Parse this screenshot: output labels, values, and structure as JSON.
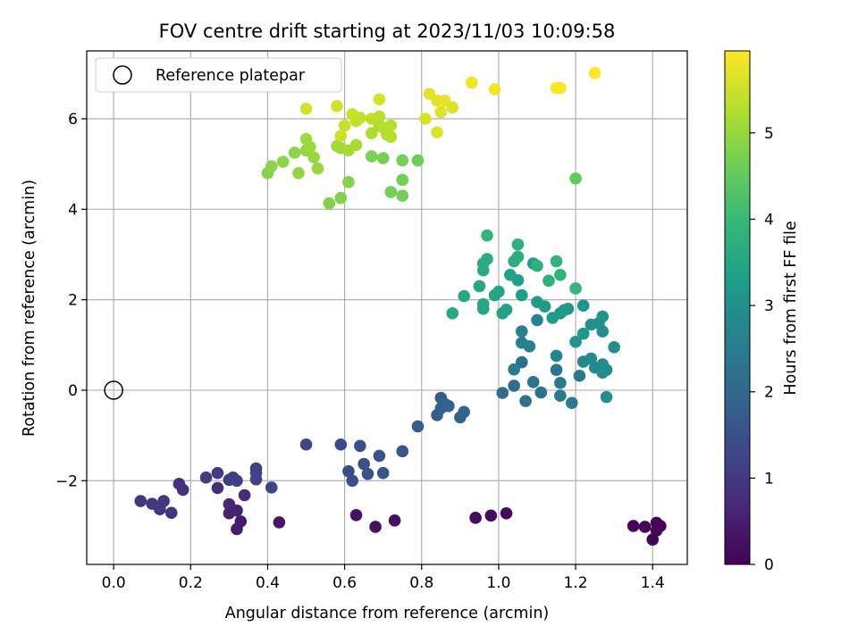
{
  "chart_data": {
    "type": "scatter",
    "title": "FOV centre drift starting at 2023/11/03 10:09:58",
    "xlabel": "Angular distance from reference (arcmin)",
    "ylabel": "Rotation from reference (arcmin)",
    "xlim": [
      -0.07,
      1.49
    ],
    "ylim": [
      -3.85,
      7.5
    ],
    "x_ticks": [
      "0.0",
      "0.2",
      "0.4",
      "0.6",
      "0.8",
      "1.0",
      "1.2",
      "1.4"
    ],
    "x_tick_values": [
      0,
      0.2,
      0.4,
      0.6,
      0.8,
      1.0,
      1.2,
      1.4
    ],
    "y_ticks": [
      "−2",
      "0",
      "2",
      "4",
      "6"
    ],
    "y_tick_values": [
      -2,
      0,
      2,
      4,
      6
    ],
    "grid": true,
    "legend_position": "upper-left",
    "legend": [
      "Reference platepar"
    ],
    "reference_point": {
      "x": 0,
      "y": 0
    },
    "colorbar": {
      "label": "Hours from first FF file",
      "colormap": "viridis",
      "range": [
        0,
        5.95
      ],
      "ticks": [
        "0",
        "1",
        "2",
        "3",
        "4",
        "5"
      ],
      "tick_values": [
        0,
        1,
        2,
        3,
        4,
        5
      ]
    },
    "colormap_stops": [
      "#440154",
      "#482878",
      "#3e4989",
      "#31688e",
      "#26828e",
      "#1f9e89",
      "#35b779",
      "#6ece58",
      "#b5de2b",
      "#fde725"
    ],
    "points": [
      [
        1.41,
        -2.93,
        0.02
      ],
      [
        1.42,
        -3.0,
        0.04
      ],
      [
        1.4,
        -3.3,
        0.05
      ],
      [
        1.41,
        -3.1,
        0.07
      ],
      [
        1.38,
        -3.02,
        0.09
      ],
      [
        1.35,
        -3.0,
        0.11
      ],
      [
        1.02,
        -2.72,
        0.15
      ],
      [
        0.98,
        -2.77,
        0.18
      ],
      [
        0.94,
        -2.82,
        0.2
      ],
      [
        0.73,
        -2.88,
        0.25
      ],
      [
        0.68,
        -3.02,
        0.28
      ],
      [
        0.63,
        -2.76,
        0.3
      ],
      [
        0.43,
        -2.92,
        0.38
      ],
      [
        0.33,
        -2.9,
        0.45
      ],
      [
        0.32,
        -3.07,
        0.5
      ],
      [
        0.3,
        -2.72,
        0.55
      ],
      [
        0.32,
        -2.66,
        0.58
      ],
      [
        0.3,
        -2.52,
        0.62
      ],
      [
        0.34,
        -2.32,
        0.7
      ],
      [
        0.27,
        -2.16,
        0.78
      ],
      [
        0.18,
        -2.2,
        0.82
      ],
      [
        0.17,
        -2.07,
        0.85
      ],
      [
        0.15,
        -2.71,
        0.88
      ],
      [
        0.12,
        -2.63,
        0.9
      ],
      [
        0.13,
        -2.45,
        0.93
      ],
      [
        0.1,
        -2.51,
        0.95
      ],
      [
        0.07,
        -2.45,
        0.97
      ],
      [
        0.12,
        -2.57,
        1.0
      ],
      [
        0.24,
        -1.93,
        1.02
      ],
      [
        0.27,
        -1.83,
        1.05
      ],
      [
        0.3,
        -1.98,
        1.08
      ],
      [
        0.31,
        -1.93,
        1.1
      ],
      [
        0.32,
        -2.0,
        1.12
      ],
      [
        0.37,
        -1.73,
        1.15
      ],
      [
        0.37,
        -1.83,
        1.17
      ],
      [
        0.37,
        -1.97,
        1.2
      ],
      [
        0.41,
        -2.15,
        1.22
      ],
      [
        0.5,
        -1.2,
        1.3
      ],
      [
        0.59,
        -1.2,
        1.35
      ],
      [
        0.61,
        -1.79,
        1.4
      ],
      [
        0.62,
        -2.0,
        1.42
      ],
      [
        0.64,
        -1.23,
        1.45
      ],
      [
        0.65,
        -1.63,
        1.47
      ],
      [
        0.66,
        -1.85,
        1.5
      ],
      [
        0.69,
        -1.45,
        1.52
      ],
      [
        0.7,
        -1.83,
        1.55
      ],
      [
        0.75,
        -1.35,
        1.6
      ],
      [
        0.79,
        -0.8,
        1.7
      ],
      [
        0.84,
        -0.55,
        1.75
      ],
      [
        0.85,
        -0.17,
        1.78
      ],
      [
        0.86,
        -0.3,
        1.8
      ],
      [
        0.85,
        -0.4,
        1.82
      ],
      [
        0.87,
        -0.35,
        1.85
      ],
      [
        0.9,
        -0.6,
        1.88
      ],
      [
        0.91,
        -0.48,
        1.9
      ],
      [
        1.01,
        -0.06,
        2.05
      ],
      [
        1.04,
        0.1,
        2.1
      ],
      [
        1.06,
        0.62,
        2.15
      ],
      [
        1.07,
        -0.24,
        2.2
      ],
      [
        1.09,
        0.18,
        2.25
      ],
      [
        1.11,
        -0.05,
        2.3
      ],
      [
        1.15,
        0.45,
        2.35
      ],
      [
        1.16,
        0.16,
        2.4
      ],
      [
        1.16,
        -0.12,
        2.42
      ],
      [
        1.19,
        -0.28,
        2.45
      ],
      [
        1.21,
        0.32,
        2.5
      ],
      [
        1.04,
        0.46,
        2.55
      ],
      [
        1.06,
        1.05,
        2.6
      ],
      [
        1.08,
        0.97,
        2.62
      ],
      [
        1.06,
        1.3,
        2.65
      ],
      [
        1.1,
        1.55,
        2.7
      ],
      [
        1.15,
        0.76,
        2.75
      ],
      [
        1.22,
        0.63,
        2.78
      ],
      [
        1.24,
        0.7,
        2.8
      ],
      [
        1.25,
        0.5,
        2.82
      ],
      [
        1.27,
        0.39,
        2.85
      ],
      [
        1.27,
        0.57,
        2.88
      ],
      [
        1.28,
        0.45,
        2.9
      ],
      [
        1.3,
        0.95,
        2.92
      ],
      [
        1.27,
        1.3,
        2.95
      ],
      [
        1.28,
        -0.15,
        2.97
      ],
      [
        1.26,
        1.48,
        3.0
      ],
      [
        1.24,
        1.45,
        3.02
      ],
      [
        1.27,
        1.63,
        3.05
      ],
      [
        1.22,
        1.87,
        3.08
      ],
      [
        1.2,
        1.07,
        3.1
      ],
      [
        1.22,
        1.25,
        3.12
      ],
      [
        1.18,
        1.8,
        3.15
      ],
      [
        1.16,
        1.7,
        3.18
      ],
      [
        1.17,
        1.77,
        3.2
      ],
      [
        1.14,
        1.6,
        3.22
      ],
      [
        1.12,
        1.85,
        3.25
      ],
      [
        1.1,
        1.95,
        3.28
      ],
      [
        1.09,
        2.8,
        3.3
      ],
      [
        1.06,
        2.1,
        3.32
      ],
      [
        1.05,
        2.43,
        3.35
      ],
      [
        1.03,
        2.55,
        3.38
      ],
      [
        1.02,
        1.78,
        3.4
      ],
      [
        1.01,
        1.7,
        3.42
      ],
      [
        1.0,
        2.18,
        3.45
      ],
      [
        0.99,
        2.1,
        3.48
      ],
      [
        0.96,
        1.9,
        3.5
      ],
      [
        0.96,
        1.8,
        3.52
      ],
      [
        0.95,
        2.3,
        3.55
      ],
      [
        0.91,
        2.08,
        3.58
      ],
      [
        0.88,
        1.7,
        3.6
      ],
      [
        0.96,
        2.65,
        3.62
      ],
      [
        0.96,
        2.8,
        3.65
      ],
      [
        0.97,
        2.9,
        3.68
      ],
      [
        1.04,
        2.85,
        3.7
      ],
      [
        1.05,
        2.95,
        3.72
      ],
      [
        1.05,
        3.22,
        3.75
      ],
      [
        1.1,
        2.75,
        3.78
      ],
      [
        1.13,
        2.42,
        3.8
      ],
      [
        1.15,
        2.85,
        3.82
      ],
      [
        1.16,
        2.55,
        3.85
      ],
      [
        1.2,
        2.25,
        3.88
      ],
      [
        0.97,
        3.42,
        3.92
      ],
      [
        1.2,
        4.68,
        4.5
      ],
      [
        0.79,
        5.08,
        4.6
      ],
      [
        0.75,
        4.65,
        4.62
      ],
      [
        0.75,
        4.3,
        4.65
      ],
      [
        0.72,
        4.38,
        4.68
      ],
      [
        0.75,
        5.08,
        4.7
      ],
      [
        0.7,
        5.13,
        4.72
      ],
      [
        0.67,
        5.17,
        4.75
      ],
      [
        0.56,
        4.13,
        4.78
      ],
      [
        0.59,
        4.25,
        4.8
      ],
      [
        0.61,
        4.6,
        4.82
      ],
      [
        0.4,
        4.8,
        4.85
      ],
      [
        0.41,
        4.95,
        4.88
      ],
      [
        0.44,
        5.05,
        4.9
      ],
      [
        0.47,
        5.25,
        4.92
      ],
      [
        0.48,
        4.8,
        4.95
      ],
      [
        0.5,
        5.3,
        4.97
      ],
      [
        0.52,
        5.15,
        5.0
      ],
      [
        0.53,
        4.9,
        5.02
      ],
      [
        0.51,
        5.38,
        5.05
      ],
      [
        0.5,
        5.55,
        5.07
      ],
      [
        0.58,
        5.4,
        5.1
      ],
      [
        0.59,
        5.35,
        5.12
      ],
      [
        0.61,
        5.3,
        5.15
      ],
      [
        0.63,
        5.42,
        5.17
      ],
      [
        0.67,
        5.68,
        5.2
      ],
      [
        0.69,
        5.85,
        5.22
      ],
      [
        0.71,
        5.65,
        5.25
      ],
      [
        0.72,
        5.6,
        5.27
      ],
      [
        0.72,
        5.85,
        5.3
      ],
      [
        0.7,
        5.8,
        5.32
      ],
      [
        0.69,
        6.05,
        5.35
      ],
      [
        0.67,
        6.0,
        5.37
      ],
      [
        0.64,
        6.02,
        5.4
      ],
      [
        0.63,
        5.95,
        5.42
      ],
      [
        0.62,
        6.1,
        5.45
      ],
      [
        0.6,
        5.85,
        5.47
      ],
      [
        0.59,
        5.62,
        5.5
      ],
      [
        0.58,
        6.28,
        5.52
      ],
      [
        0.5,
        6.22,
        5.55
      ],
      [
        0.69,
        6.43,
        5.57
      ],
      [
        0.81,
        6.0,
        5.6
      ],
      [
        0.84,
        5.7,
        5.62
      ],
      [
        0.85,
        6.15,
        5.65
      ],
      [
        0.88,
        6.25,
        5.67
      ],
      [
        0.82,
        6.55,
        5.7
      ],
      [
        0.84,
        6.4,
        5.72
      ],
      [
        0.86,
        6.4,
        5.75
      ],
      [
        0.93,
        6.8,
        5.8
      ],
      [
        0.99,
        6.65,
        5.85
      ],
      [
        1.15,
        6.68,
        5.88
      ],
      [
        1.16,
        6.68,
        5.9
      ],
      [
        1.25,
        7.01,
        5.95
      ]
    ]
  }
}
